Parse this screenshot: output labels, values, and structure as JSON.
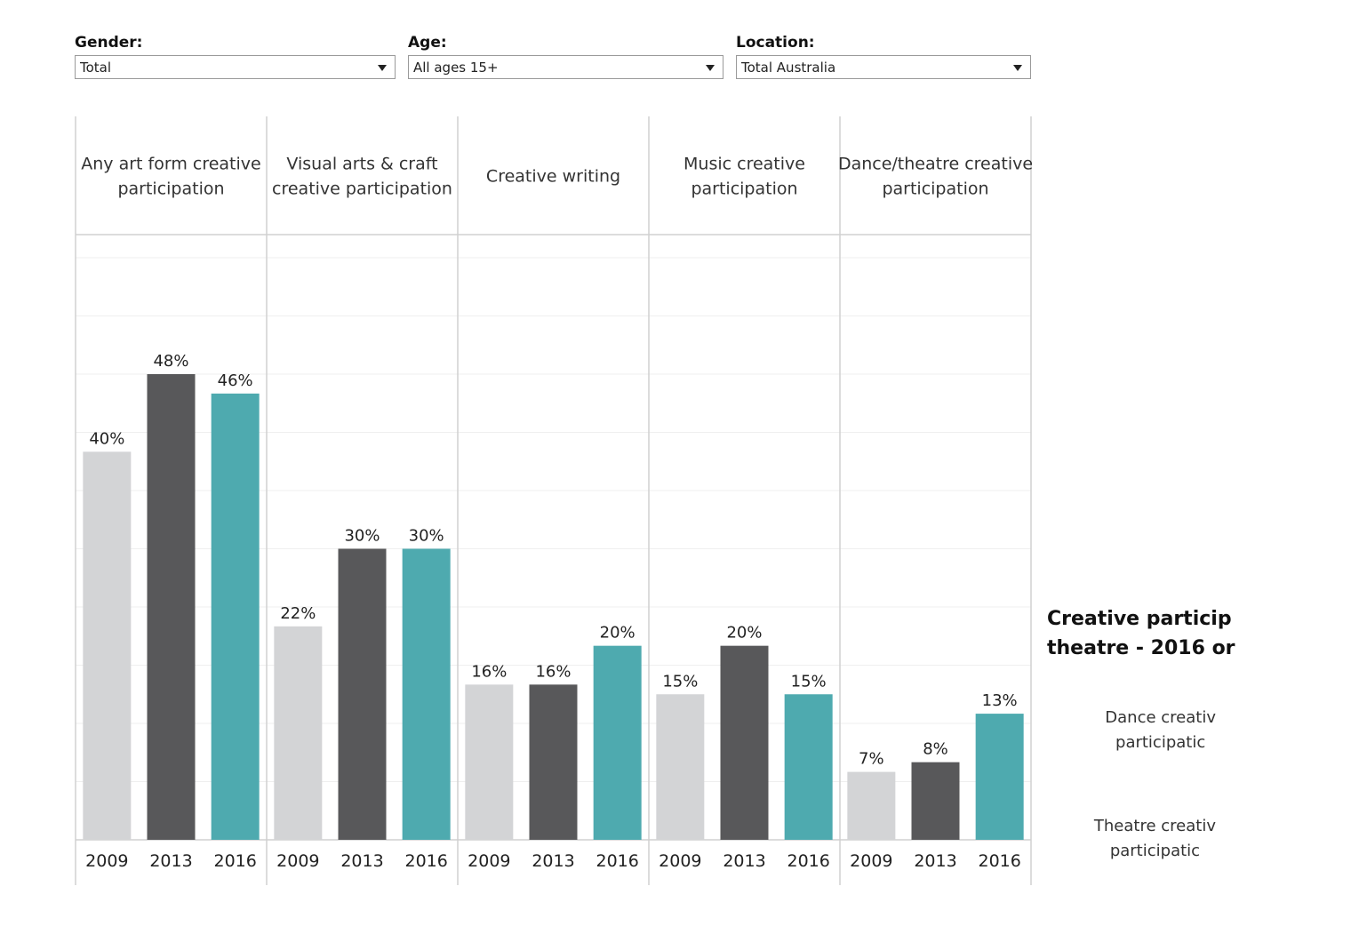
{
  "filters": [
    {
      "label": "Gender:",
      "value": "Total"
    },
    {
      "label": "Age:",
      "value": "All ages 15+"
    },
    {
      "label": "Location:",
      "value": "Total Australia"
    }
  ],
  "chart_data": {
    "type": "bar",
    "ylim": [
      0,
      0.6
    ],
    "grid": true,
    "panels": [
      {
        "title": [
          "Any art form creative",
          "participation"
        ],
        "categories": [
          "2009",
          "2013",
          "2016"
        ],
        "values": [
          40,
          48,
          46
        ],
        "labels": [
          "40%",
          "48%",
          "46%"
        ]
      },
      {
        "title": [
          "Visual arts & craft",
          "creative participation"
        ],
        "categories": [
          "2009",
          "2013",
          "2016"
        ],
        "values": [
          22,
          30,
          30
        ],
        "labels": [
          "22%",
          "30%",
          "30%"
        ]
      },
      {
        "title": [
          "Creative writing"
        ],
        "categories": [
          "2009",
          "2013",
          "2016"
        ],
        "values": [
          16,
          16,
          20
        ],
        "labels": [
          "16%",
          "16%",
          "20%"
        ]
      },
      {
        "title": [
          "Music creative",
          "participation"
        ],
        "categories": [
          "2009",
          "2013",
          "2016"
        ],
        "values": [
          15,
          20,
          15
        ],
        "labels": [
          "15%",
          "20%",
          "15%"
        ]
      },
      {
        "title": [
          "Dance/theatre creative",
          "participation"
        ],
        "categories": [
          "2009",
          "2013",
          "2016"
        ],
        "values": [
          7,
          8,
          13
        ],
        "labels": [
          "7%",
          "8%",
          "13%"
        ]
      }
    ],
    "colors": {
      "2009": "#d3d4d6",
      "2013": "#58585a",
      "2016": "#4eaaaf"
    }
  },
  "side": {
    "title": [
      "Creative particip",
      "theatre - 2016 or"
    ],
    "labels": [
      {
        "line1": "Dance creativ",
        "line2": "participatic"
      },
      {
        "line1": "Theatre creativ",
        "line2": "participatic"
      }
    ]
  }
}
